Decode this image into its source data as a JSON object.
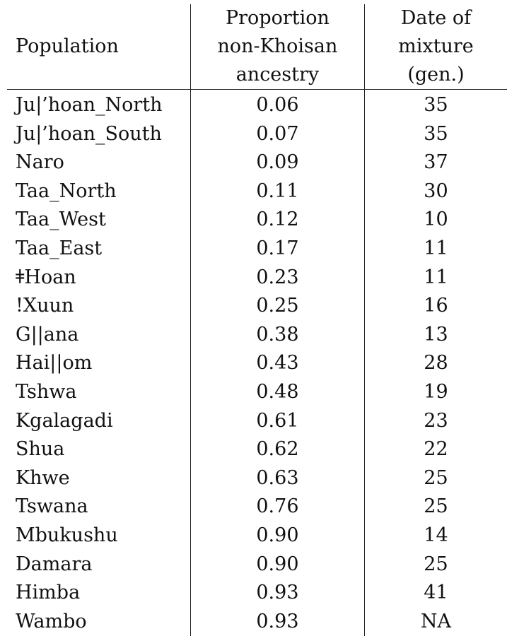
{
  "headers": {
    "population": "Population",
    "proportion": [
      "Proportion",
      "non-Khoisan",
      "ancestry"
    ],
    "date": [
      "Date of",
      "mixture",
      "(gen.)"
    ]
  },
  "rows": [
    {
      "population": "Ju|’hoan_North",
      "proportion": "0.06",
      "date": "35"
    },
    {
      "population": "Ju|’hoan_South",
      "proportion": "0.07",
      "date": "35"
    },
    {
      "population": "Naro",
      "proportion": "0.09",
      "date": "37"
    },
    {
      "population": "Taa_North",
      "proportion": "0.11",
      "date": "30"
    },
    {
      "population": "Taa_West",
      "proportion": "0.12",
      "date": "10"
    },
    {
      "population": "Taa_East",
      "proportion": "0.17",
      "date": "11"
    },
    {
      "population": "ǂHoan",
      "proportion": "0.23",
      "date": "11"
    },
    {
      "population": "!Xuun",
      "proportion": "0.25",
      "date": "16"
    },
    {
      "population": "G||ana",
      "proportion": "0.38",
      "date": "13"
    },
    {
      "population": "Hai||om",
      "proportion": "0.43",
      "date": "28"
    },
    {
      "population": "Tshwa",
      "proportion": "0.48",
      "date": "19"
    },
    {
      "population": "Kgalagadi",
      "proportion": "0.61",
      "date": "23"
    },
    {
      "population": "Shua",
      "proportion": "0.62",
      "date": "22"
    },
    {
      "population": "Khwe",
      "proportion": "0.63",
      "date": "25"
    },
    {
      "population": "Tswana",
      "proportion": "0.76",
      "date": "25"
    },
    {
      "population": "Mbukushu",
      "proportion": "0.90",
      "date": "14"
    },
    {
      "population": "Damara",
      "proportion": "0.90",
      "date": "25"
    },
    {
      "population": "Himba",
      "proportion": "0.93",
      "date": "41"
    },
    {
      "population": "Wambo",
      "proportion": "0.93",
      "date": "NA"
    }
  ]
}
